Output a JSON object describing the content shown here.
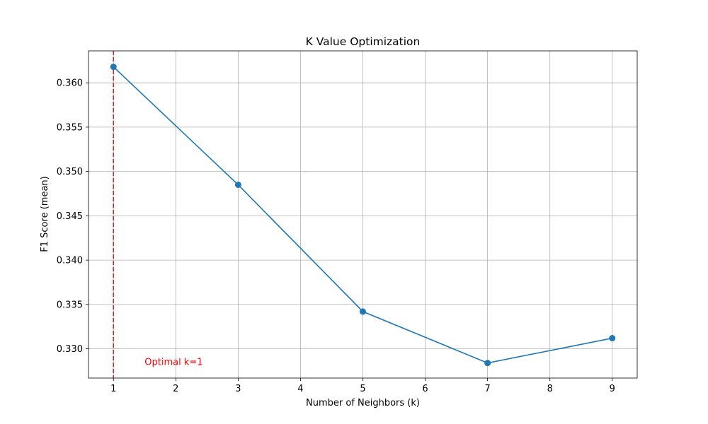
{
  "chart_data": {
    "type": "line",
    "title": "K Value Optimization",
    "xlabel": "Number of Neighbors (k)",
    "ylabel": "F1 Score (mean)",
    "x": [
      1,
      3,
      5,
      7,
      9
    ],
    "series": [
      {
        "values": [
          0.3618,
          0.3485,
          0.3342,
          0.3284,
          0.3312
        ],
        "color": "#1f77b4",
        "marker": "circle"
      }
    ],
    "xlim": [
      0.6,
      9.4
    ],
    "ylim": [
      0.3267,
      0.3636
    ],
    "xticks": [
      1,
      2,
      3,
      4,
      5,
      6,
      7,
      8,
      9
    ],
    "yticks": [
      0.33,
      0.335,
      0.34,
      0.345,
      0.35,
      0.355,
      0.36
    ],
    "ytick_labels": [
      "0.330",
      "0.335",
      "0.340",
      "0.345",
      "0.350",
      "0.355",
      "0.360"
    ],
    "grid": true,
    "vline": {
      "x": 1,
      "color": "#d62728",
      "style": "dashed"
    },
    "annotation": {
      "text": "Optimal k=1",
      "x": 2,
      "y": 0.3285,
      "color": "#ff0000"
    }
  }
}
